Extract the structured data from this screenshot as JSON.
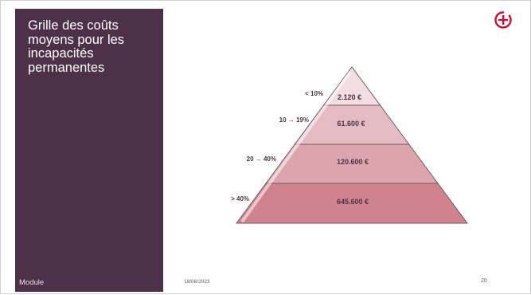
{
  "slide": {
    "title": "Grille des coûts moyens pour les incapacités permanentes",
    "footer_left": "Module",
    "date": "18/08/2023",
    "page_number": "20",
    "logo_icon": "circle-plus-logo"
  },
  "chart_data": {
    "type": "pyramid",
    "tiers": [
      {
        "label": "< 10%",
        "value": "2.120 €",
        "color": "#f2dde2"
      },
      {
        "label": "10 → 19%",
        "value": "61.600 €",
        "color": "#e6bcc4"
      },
      {
        "label": "20 → 40%",
        "value": "120.600 €",
        "color": "#dca5ae"
      },
      {
        "label": "> 40%",
        "value": "645.600 €",
        "color": "#d0838f"
      }
    ]
  },
  "colors": {
    "sidebar": "#4c3148",
    "accent": "#c8102e",
    "label_text": "#4c3148"
  }
}
